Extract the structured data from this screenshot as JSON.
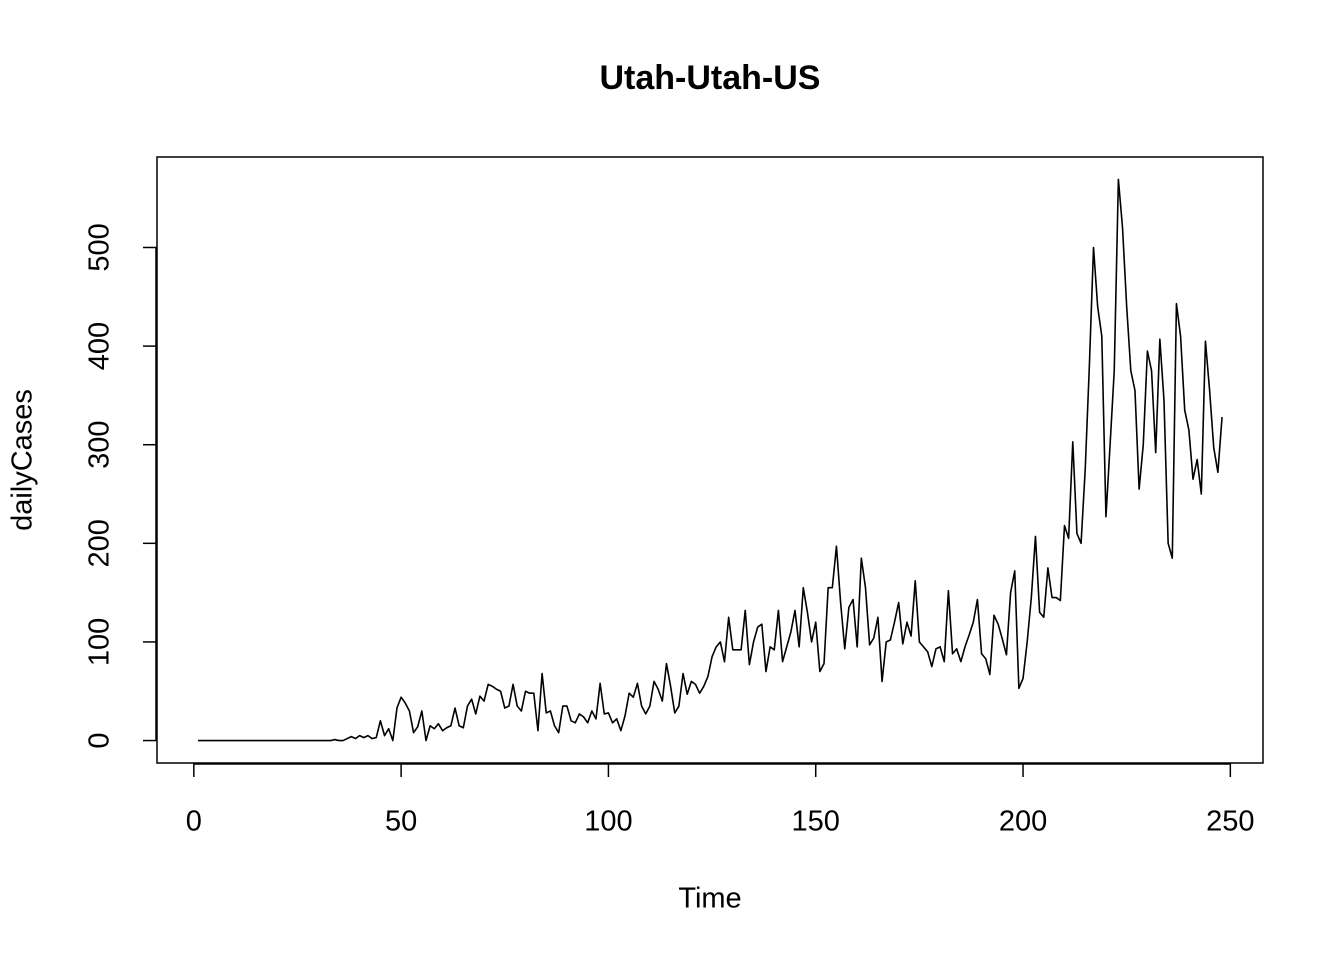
{
  "chart_data": {
    "type": "line",
    "title": "Utah-Utah-US",
    "x_label": "Time",
    "y_label": "dailyCases",
    "x": [
      1,
      2,
      3,
      4,
      5,
      6,
      7,
      8,
      9,
      10,
      11,
      12,
      13,
      14,
      15,
      16,
      17,
      18,
      19,
      20,
      21,
      22,
      23,
      24,
      25,
      26,
      27,
      28,
      29,
      30,
      31,
      32,
      33,
      34,
      35,
      36,
      37,
      38,
      39,
      40,
      41,
      42,
      43,
      44,
      45,
      46,
      47,
      48,
      49,
      50,
      51,
      52,
      53,
      54,
      55,
      56,
      57,
      58,
      59,
      60,
      61,
      62,
      63,
      64,
      65,
      66,
      67,
      68,
      69,
      70,
      71,
      72,
      73,
      74,
      75,
      76,
      77,
      78,
      79,
      80,
      81,
      82,
      83,
      84,
      85,
      86,
      87,
      88,
      89,
      90,
      91,
      92,
      93,
      94,
      95,
      96,
      97,
      98,
      99,
      100,
      101,
      102,
      103,
      104,
      105,
      106,
      107,
      108,
      109,
      110,
      111,
      112,
      113,
      114,
      115,
      116,
      117,
      118,
      119,
      120,
      121,
      122,
      123,
      124,
      125,
      126,
      127,
      128,
      129,
      130,
      131,
      132,
      133,
      134,
      135,
      136,
      137,
      138,
      139,
      140,
      141,
      142,
      143,
      144,
      145,
      146,
      147,
      148,
      149,
      150,
      151,
      152,
      153,
      154,
      155,
      156,
      157,
      158,
      159,
      160,
      161,
      162,
      163,
      164,
      165,
      166,
      167,
      168,
      169,
      170,
      171,
      172,
      173,
      174,
      175,
      176,
      177,
      178,
      179,
      180,
      181,
      182,
      183,
      184,
      185,
      186,
      187,
      188,
      189,
      190,
      191,
      192,
      193,
      194,
      195,
      196,
      197,
      198,
      199,
      200,
      201,
      202,
      203,
      204,
      205,
      206,
      207,
      208,
      209,
      210,
      211,
      212,
      213,
      214,
      215,
      216,
      217,
      218,
      219,
      220,
      221,
      222,
      223,
      224,
      225,
      226,
      227,
      228,
      229,
      230,
      231,
      232,
      233,
      234,
      235,
      236,
      237,
      238,
      239,
      240,
      241,
      242,
      243,
      244,
      245,
      246,
      247,
      248
    ],
    "series": [
      {
        "color": "#000000",
        "values": [
          0,
          0,
          0,
          0,
          0,
          0,
          0,
          0,
          0,
          0,
          0,
          0,
          0,
          0,
          0,
          0,
          0,
          0,
          0,
          0,
          0,
          0,
          0,
          0,
          0,
          0,
          0,
          0,
          0,
          0,
          0,
          0,
          0,
          1,
          0,
          0,
          2,
          4,
          2,
          5,
          3,
          5,
          2,
          3,
          20,
          5,
          12,
          0,
          33,
          44,
          38,
          30,
          8,
          14,
          30,
          0,
          15,
          12,
          17,
          10,
          13,
          15,
          33,
          15,
          13,
          35,
          42,
          27,
          45,
          40,
          57,
          55,
          52,
          50,
          33,
          35,
          57,
          35,
          30,
          50,
          48,
          48,
          10,
          68,
          28,
          30,
          15,
          8,
          35,
          35,
          20,
          18,
          27,
          24,
          18,
          30,
          22,
          58,
          27,
          28,
          18,
          22,
          10,
          25,
          48,
          44,
          58,
          35,
          27,
          35,
          60,
          52,
          40,
          78,
          55,
          28,
          35,
          68,
          47,
          60,
          57,
          48,
          55,
          65,
          85,
          95,
          100,
          80,
          125,
          92,
          92,
          92,
          132,
          77,
          100,
          115,
          118,
          70,
          95,
          92,
          132,
          80,
          95,
          110,
          132,
          95,
          155,
          130,
          100,
          120,
          70,
          78,
          155,
          155,
          197,
          140,
          93,
          135,
          143,
          95,
          185,
          155,
          97,
          104,
          125,
          60,
          100,
          102,
          120,
          140,
          98,
          120,
          106,
          162,
          100,
          95,
          90,
          75,
          93,
          95,
          80,
          152,
          88,
          93,
          80,
          95,
          107,
          120,
          143,
          88,
          83,
          67,
          127,
          118,
          103,
          87,
          150,
          172,
          53,
          63,
          100,
          145,
          207,
          130,
          125,
          175,
          145,
          145,
          142,
          218,
          205,
          303,
          210,
          200,
          275,
          380,
          500,
          440,
          410,
          227,
          300,
          375,
          569,
          520,
          440,
          375,
          355,
          255,
          300,
          395,
          375,
          292,
          407,
          345,
          200,
          185,
          443,
          410,
          335,
          315,
          265,
          285,
          250,
          405,
          355,
          297,
          272,
          328
        ]
      }
    ],
    "xlim": [
      -8.88,
      257.88
    ],
    "ylim": [
      -22.76,
      591.76
    ],
    "xticks": [
      0,
      50,
      100,
      150,
      200,
      250
    ],
    "yticks": [
      0,
      100,
      200,
      300,
      400,
      500
    ]
  }
}
